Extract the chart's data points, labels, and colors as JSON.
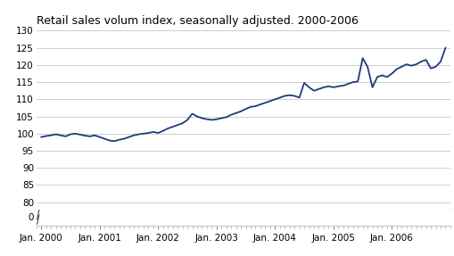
{
  "title": "Retail sales volum index, seasonally adjusted. 2000-2006",
  "line_color": "#1F3A7A",
  "background_color": "#ffffff",
  "grid_color": "#c8c8c8",
  "xlabel_ticks": [
    "Jan. 2000",
    "Jan. 2001",
    "Jan. 2002",
    "Jan. 2003",
    "Jan. 2004",
    "Jan. 2005",
    "Jan. 2006"
  ],
  "yticks_main": [
    80,
    85,
    90,
    95,
    100,
    105,
    110,
    115,
    120,
    125,
    130
  ],
  "ylim_main": [
    78,
    130
  ],
  "values": [
    99.0,
    99.3,
    99.5,
    99.8,
    99.5,
    99.2,
    99.8,
    100.0,
    99.7,
    99.4,
    99.2,
    99.5,
    99.0,
    98.5,
    98.0,
    97.8,
    98.2,
    98.5,
    99.0,
    99.5,
    99.8,
    100.0,
    100.2,
    100.5,
    100.2,
    100.8,
    101.5,
    102.0,
    102.5,
    103.0,
    104.0,
    105.8,
    105.0,
    104.5,
    104.2,
    104.0,
    104.2,
    104.5,
    104.8,
    105.5,
    106.0,
    106.5,
    107.2,
    107.8,
    108.0,
    108.5,
    109.0,
    109.5,
    110.0,
    110.5,
    111.0,
    111.2,
    111.0,
    110.5,
    114.8,
    113.5,
    112.5,
    113.0,
    113.5,
    113.8,
    113.5,
    113.8,
    114.0,
    114.5,
    115.0,
    115.2,
    122.0,
    119.5,
    113.5,
    116.5,
    117.0,
    116.5,
    117.5,
    118.8,
    119.5,
    120.2,
    119.8,
    120.2,
    121.0,
    121.5,
    119.0,
    119.5,
    121.0,
    125.0
  ],
  "title_fontsize": 9,
  "tick_fontsize": 7.5,
  "line_width": 1.3
}
